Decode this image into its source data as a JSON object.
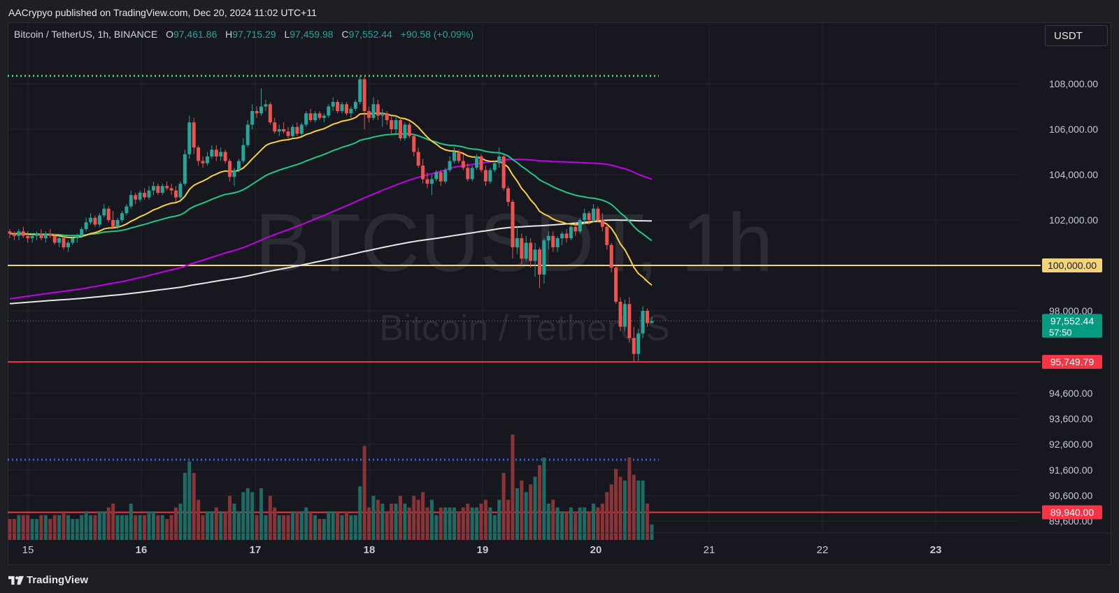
{
  "header": {
    "published_text": "AACrypyo published on TradingView.com, Dec 20, 2024 11:02 UTC+11"
  },
  "legend": {
    "symbol": "Bitcoin / TetherUS, 1h, BINANCE",
    "open_label": "O",
    "open": "97,461.86",
    "high_label": "H",
    "high": "97,715.29",
    "low_label": "L",
    "low": "97,459.98",
    "close_label": "C",
    "close": "97,552.44",
    "change": "+90.58 (+0.09%)"
  },
  "currency_button": "USDT",
  "watermark": {
    "ticker": "BTCUSDT, 1h",
    "name": "Bitcoin / TetherUS"
  },
  "footer": {
    "brand": "TradingView"
  },
  "colors": {
    "up": "#26a69a",
    "down": "#ef5350",
    "ema_fast": "#f7d046",
    "ema_mid": "#22c985",
    "ma_magenta": "#c400e8",
    "ma_white": "#e8e8e8",
    "level_yellow": "#f3d37a",
    "level_red": "#f23645",
    "dotted_green": "#2ed47a",
    "dotted_blue": "#2f67f5"
  },
  "price_labels": [
    {
      "price": 100000,
      "text": "100,000.00",
      "style": "yellow"
    },
    {
      "price": 97552.44,
      "text": "97,552.44",
      "sub": "57:50",
      "style": "green"
    },
    {
      "price": 95749.79,
      "text": "95,749.79",
      "style": "red"
    },
    {
      "price": 89940,
      "text": "89,940.00",
      "style": "red"
    }
  ],
  "chart_data": {
    "type": "candlestick",
    "title": "Bitcoin / TetherUS, 1h, BINANCE",
    "price_axis_upper": {
      "ticks": [
        108000,
        106000,
        104000,
        102000,
        100000,
        98000
      ],
      "tick_labels": [
        "108,000.00",
        "106,000.00",
        "104,000.00",
        "102,000.00",
        "100,000.00",
        "98,000.00"
      ]
    },
    "price_axis_lower": {
      "ticks": [
        94600,
        93600,
        92600,
        91600,
        90600,
        89600
      ],
      "tick_labels": [
        "94,600.00",
        "93,600.00",
        "92,600.00",
        "91,600.00",
        "90,600.00",
        "89,600.00"
      ]
    },
    "x_tick_labels": [
      "15",
      "16",
      "17",
      "18",
      "19",
      "20",
      "21",
      "22",
      "23"
    ],
    "horizontal_levels": [
      {
        "name": "green dotted",
        "price": 108350
      },
      {
        "name": "yellow",
        "price": 100000
      },
      {
        "name": "red",
        "price": 95749.79
      },
      {
        "name": "blue dotted",
        "price": 92000
      },
      {
        "name": "red lower",
        "price": 89940
      }
    ],
    "candles_ohlc": [
      [
        101500,
        101600,
        101200,
        101400
      ],
      [
        101400,
        101500,
        101100,
        101300
      ],
      [
        101300,
        101600,
        101100,
        101500
      ],
      [
        101500,
        101700,
        101200,
        101300
      ],
      [
        101300,
        101500,
        101000,
        101200
      ],
      [
        101200,
        101400,
        101000,
        101300
      ],
      [
        101300,
        101500,
        101100,
        101400
      ],
      [
        101400,
        101600,
        101100,
        101200
      ],
      [
        101200,
        101500,
        101000,
        101400
      ],
      [
        101400,
        101600,
        101200,
        101300
      ],
      [
        101300,
        101400,
        100900,
        101000
      ],
      [
        101000,
        101300,
        100800,
        101200
      ],
      [
        101200,
        101300,
        100700,
        100800
      ],
      [
        100800,
        101100,
        100600,
        101000
      ],
      [
        101000,
        101300,
        100900,
        101200
      ],
      [
        101200,
        101400,
        101000,
        101300
      ],
      [
        101300,
        101700,
        101200,
        101600
      ],
      [
        101600,
        102100,
        101500,
        101900
      ],
      [
        101900,
        102300,
        101800,
        102100
      ],
      [
        102100,
        102200,
        101700,
        101800
      ],
      [
        101800,
        102300,
        101700,
        102200
      ],
      [
        102200,
        102700,
        102100,
        102500
      ],
      [
        102500,
        102600,
        101900,
        102000
      ],
      [
        102000,
        102400,
        101600,
        101700
      ],
      [
        101700,
        102100,
        101600,
        102000
      ],
      [
        102000,
        102400,
        101900,
        102300
      ],
      [
        102300,
        102700,
        102200,
        102600
      ],
      [
        102600,
        103300,
        102500,
        103100
      ],
      [
        103100,
        103200,
        102700,
        102900
      ],
      [
        102900,
        103300,
        102800,
        103200
      ],
      [
        103200,
        103400,
        102900,
        103000
      ],
      [
        103000,
        103500,
        102900,
        103300
      ],
      [
        103300,
        103700,
        103100,
        103500
      ],
      [
        103500,
        103600,
        103100,
        103200
      ],
      [
        103200,
        103600,
        103100,
        103500
      ],
      [
        103500,
        103700,
        103300,
        103400
      ],
      [
        103400,
        103600,
        103100,
        103300
      ],
      [
        103300,
        103500,
        102800,
        103000
      ],
      [
        103000,
        103700,
        102900,
        103600
      ],
      [
        103600,
        105100,
        103500,
        104900
      ],
      [
        104900,
        106600,
        104700,
        106300
      ],
      [
        106300,
        106500,
        104900,
        105200
      ],
      [
        105200,
        105300,
        104400,
        104600
      ],
      [
        104600,
        104800,
        104300,
        104500
      ],
      [
        104500,
        105000,
        104400,
        104800
      ],
      [
        104800,
        105300,
        104700,
        105100
      ],
      [
        105100,
        105300,
        104600,
        104800
      ],
      [
        104800,
        105200,
        104600,
        105000
      ],
      [
        105000,
        105100,
        104500,
        104600
      ],
      [
        104600,
        104700,
        103700,
        103900
      ],
      [
        103900,
        104300,
        103500,
        104200
      ],
      [
        104200,
        104700,
        104100,
        104600
      ],
      [
        104600,
        105600,
        104500,
        105300
      ],
      [
        105300,
        106400,
        105200,
        106200
      ],
      [
        106200,
        107100,
        106000,
        106800
      ],
      [
        106800,
        107000,
        106500,
        106700
      ],
      [
        106700,
        107800,
        106600,
        107000
      ],
      [
        107000,
        107300,
        106800,
        107100
      ],
      [
        107100,
        107200,
        106200,
        106300
      ],
      [
        106300,
        106500,
        105800,
        105900
      ],
      [
        105900,
        106200,
        105700,
        106000
      ],
      [
        106000,
        106300,
        105800,
        105900
      ],
      [
        105900,
        106100,
        105600,
        105700
      ],
      [
        105700,
        106200,
        105600,
        106100
      ],
      [
        106100,
        106300,
        105700,
        105800
      ],
      [
        105800,
        106300,
        105700,
        106200
      ],
      [
        106200,
        106800,
        106100,
        106700
      ],
      [
        106700,
        106900,
        106300,
        106400
      ],
      [
        106400,
        106800,
        106300,
        106700
      ],
      [
        106700,
        106800,
        106400,
        106500
      ],
      [
        106500,
        106700,
        106300,
        106600
      ],
      [
        106600,
        107100,
        106500,
        107000
      ],
      [
        107000,
        107400,
        106800,
        107200
      ],
      [
        107200,
        107300,
        106700,
        106800
      ],
      [
        106800,
        107200,
        106700,
        107100
      ],
      [
        107100,
        107200,
        106600,
        106700
      ],
      [
        106700,
        107000,
        106500,
        106900
      ],
      [
        106900,
        107300,
        106800,
        107200
      ],
      [
        107200,
        108350,
        107100,
        108200
      ],
      [
        108200,
        108300,
        106000,
        106800
      ],
      [
        106800,
        107000,
        106300,
        106500
      ],
      [
        106500,
        107400,
        106400,
        107100
      ],
      [
        107100,
        107300,
        106400,
        106600
      ],
      [
        106600,
        106900,
        106100,
        106700
      ],
      [
        106700,
        106800,
        106200,
        106400
      ],
      [
        106400,
        106600,
        105800,
        106000
      ],
      [
        106000,
        106600,
        105800,
        106400
      ],
      [
        106400,
        106500,
        105500,
        105600
      ],
      [
        105600,
        106300,
        105500,
        106200
      ],
      [
        106200,
        106300,
        105600,
        105700
      ],
      [
        105700,
        105800,
        104800,
        105000
      ],
      [
        105000,
        105200,
        104300,
        104400
      ],
      [
        104400,
        104700,
        103600,
        103800
      ],
      [
        103800,
        104100,
        103400,
        103600
      ],
      [
        103600,
        104000,
        103100,
        103800
      ],
      [
        103800,
        104200,
        103700,
        104100
      ],
      [
        104100,
        104200,
        103500,
        103700
      ],
      [
        103700,
        104300,
        103600,
        104200
      ],
      [
        104200,
        104800,
        104100,
        104600
      ],
      [
        104600,
        105200,
        104500,
        105000
      ],
      [
        105000,
        105100,
        104500,
        104600
      ],
      [
        104600,
        104900,
        104200,
        104300
      ],
      [
        104300,
        104500,
        103700,
        103800
      ],
      [
        103800,
        104400,
        103700,
        104300
      ],
      [
        104300,
        104900,
        104200,
        104800
      ],
      [
        104800,
        104900,
        104100,
        104200
      ],
      [
        104200,
        104400,
        103500,
        103700
      ],
      [
        103700,
        104300,
        103600,
        104200
      ],
      [
        104200,
        104600,
        104100,
        104500
      ],
      [
        104500,
        105200,
        104300,
        104800
      ],
      [
        104800,
        104900,
        103300,
        103400
      ],
      [
        103400,
        103500,
        102600,
        102800
      ],
      [
        102800,
        102900,
        100300,
        100800
      ],
      [
        100800,
        101700,
        100500,
        101200
      ],
      [
        101200,
        101400,
        100000,
        100300
      ],
      [
        100300,
        101300,
        100200,
        101000
      ],
      [
        101000,
        101200,
        99900,
        100200
      ],
      [
        100200,
        101000,
        99500,
        100700
      ],
      [
        100700,
        100800,
        99000,
        99600
      ],
      [
        99600,
        101200,
        99200,
        101100
      ],
      [
        101100,
        101500,
        100700,
        101300
      ],
      [
        101300,
        101500,
        100600,
        100800
      ],
      [
        100800,
        101300,
        100600,
        101200
      ],
      [
        101200,
        101500,
        100900,
        101400
      ],
      [
        101400,
        101600,
        101000,
        101200
      ],
      [
        101200,
        101800,
        101100,
        101700
      ],
      [
        101700,
        101900,
        101300,
        101500
      ],
      [
        101500,
        102100,
        101400,
        102000
      ],
      [
        102000,
        102500,
        101800,
        102300
      ],
      [
        102300,
        102400,
        101800,
        102000
      ],
      [
        102000,
        102700,
        101900,
        102500
      ],
      [
        102500,
        102600,
        101900,
        102000
      ],
      [
        102000,
        102300,
        101500,
        101700
      ],
      [
        101700,
        101800,
        100700,
        100900
      ],
      [
        100900,
        101000,
        99700,
        99900
      ],
      [
        99900,
        100000,
        98300,
        98400
      ],
      [
        98400,
        98600,
        97100,
        97300
      ],
      [
        97300,
        98500,
        97100,
        98300
      ],
      [
        98300,
        98600,
        96600,
        96800
      ],
      [
        96800,
        97300,
        95749.79,
        96100
      ],
      [
        96100,
        97200,
        95800,
        97000
      ],
      [
        97000,
        98200,
        96800,
        98000
      ],
      [
        98000,
        98100,
        97300,
        97461.86
      ],
      [
        97461.86,
        97715.29,
        97459.98,
        97552.44
      ]
    ],
    "volume_upper_bound_note": "volume pane shares the lower area"
  }
}
